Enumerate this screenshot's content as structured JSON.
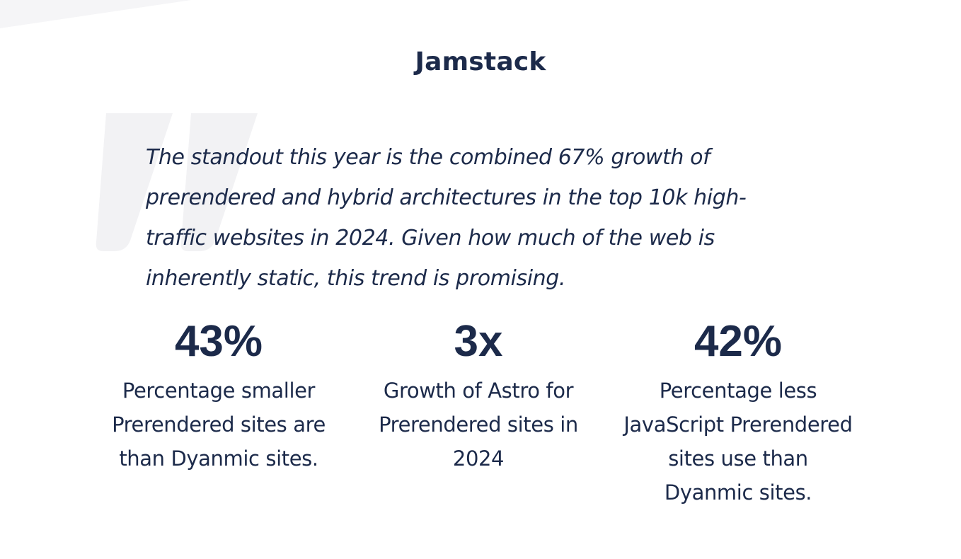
{
  "section": {
    "title": "Jamstack"
  },
  "quote": {
    "icon": "quote-mark-icon",
    "text": "The standout this year is the combined 67% growth of prerendered and hybrid architectures in the top 10k high-traffic websites in 2024. Given how much of the web is inherently static, this trend is promising."
  },
  "stats": [
    {
      "value": "43%",
      "caption": "Percentage smaller Prerendered sites are than Dyanmic sites."
    },
    {
      "value": "3x",
      "caption": "Growth of Astro for Prerendered sites in 2024"
    },
    {
      "value": "42%",
      "caption": "Percentage less JavaScript Prerendered sites use than Dyanmic sites."
    }
  ],
  "colors": {
    "text": "#1c2a4a",
    "quote_mark": "#f2f2f4",
    "background": "#ffffff"
  }
}
